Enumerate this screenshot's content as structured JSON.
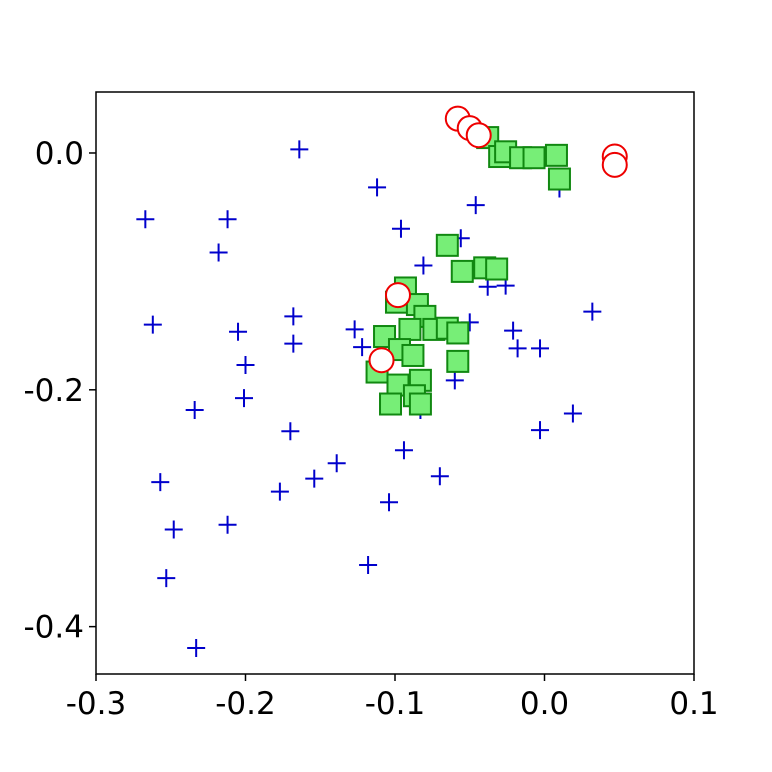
{
  "chart_data": {
    "type": "scatter",
    "xlim": [
      -0.3,
      0.1
    ],
    "ylim": [
      -0.44,
      0.0515
    ],
    "xticks": [
      -0.3,
      -0.2,
      -0.1,
      {
        "value": 0,
        "label": "0.0"
      },
      0.1
    ],
    "yticks": [
      {
        "value": 0,
        "label": "0.0"
      },
      -0.2,
      -0.4
    ],
    "grid": false,
    "series": [
      {
        "marker": "plus",
        "color": "#0000cc",
        "x": [
          -0.267,
          -0.262,
          -0.257,
          -0.248,
          -0.253,
          -0.233,
          -0.234,
          -0.212,
          -0.218,
          -0.205,
          -0.2,
          -0.201,
          -0.212,
          -0.177,
          -0.17,
          -0.168,
          -0.168,
          -0.164,
          -0.154,
          -0.139,
          -0.127,
          -0.122,
          -0.112,
          -0.118,
          -0.104,
          -0.096,
          -0.094,
          -0.081,
          -0.07,
          -0.06,
          -0.056,
          -0.046,
          -0.05,
          -0.038,
          -0.026,
          -0.021,
          -0.018,
          -0.003,
          -0.003,
          0.019,
          0.032,
          0.01,
          -0.083
        ],
        "values": [
          -0.056,
          -0.145,
          -0.278,
          -0.318,
          -0.359,
          -0.418,
          -0.217,
          -0.056,
          -0.084,
          -0.151,
          -0.179,
          -0.207,
          -0.314,
          -0.286,
          -0.235,
          -0.138,
          -0.161,
          0.003,
          -0.275,
          -0.262,
          -0.149,
          -0.164,
          -0.029,
          -0.348,
          -0.295,
          -0.064,
          -0.251,
          -0.095,
          -0.273,
          -0.192,
          -0.072,
          -0.044,
          -0.143,
          -0.113,
          -0.112,
          -0.15,
          -0.165,
          -0.165,
          -0.234,
          -0.22,
          -0.134,
          -0.03,
          -0.217
        ]
      },
      {
        "marker": "square",
        "color": "#77ee77",
        "edgecolor": "#118811",
        "x": [
          -0.065,
          -0.055,
          -0.04,
          -0.032,
          -0.093,
          -0.099,
          -0.085,
          -0.08,
          -0.09,
          -0.074,
          -0.065,
          -0.058,
          -0.107,
          -0.097,
          -0.088,
          -0.112,
          -0.058,
          -0.098,
          -0.083,
          -0.103,
          -0.087,
          -0.083,
          -0.038,
          -0.03,
          -0.026,
          -0.016,
          -0.007,
          0.008,
          0.01
        ],
        "values": [
          -0.078,
          -0.1,
          -0.097,
          -0.098,
          -0.114,
          -0.126,
          -0.128,
          -0.138,
          -0.149,
          -0.149,
          -0.148,
          -0.152,
          -0.155,
          -0.166,
          -0.171,
          -0.185,
          -0.176,
          -0.196,
          -0.192,
          -0.212,
          -0.205,
          -0.212,
          0.013,
          -0.003,
          0.001,
          -0.004,
          -0.004,
          -0.002,
          -0.022
        ]
      },
      {
        "marker": "circle",
        "color": "#ffffff",
        "edgecolor": "#ee0000",
        "x": [
          -0.058,
          -0.05,
          -0.044,
          0.047,
          0.047,
          -0.098,
          -0.109
        ],
        "values": [
          0.029,
          0.021,
          0.015,
          -0.003,
          -0.01,
          -0.12,
          -0.175
        ]
      }
    ]
  }
}
